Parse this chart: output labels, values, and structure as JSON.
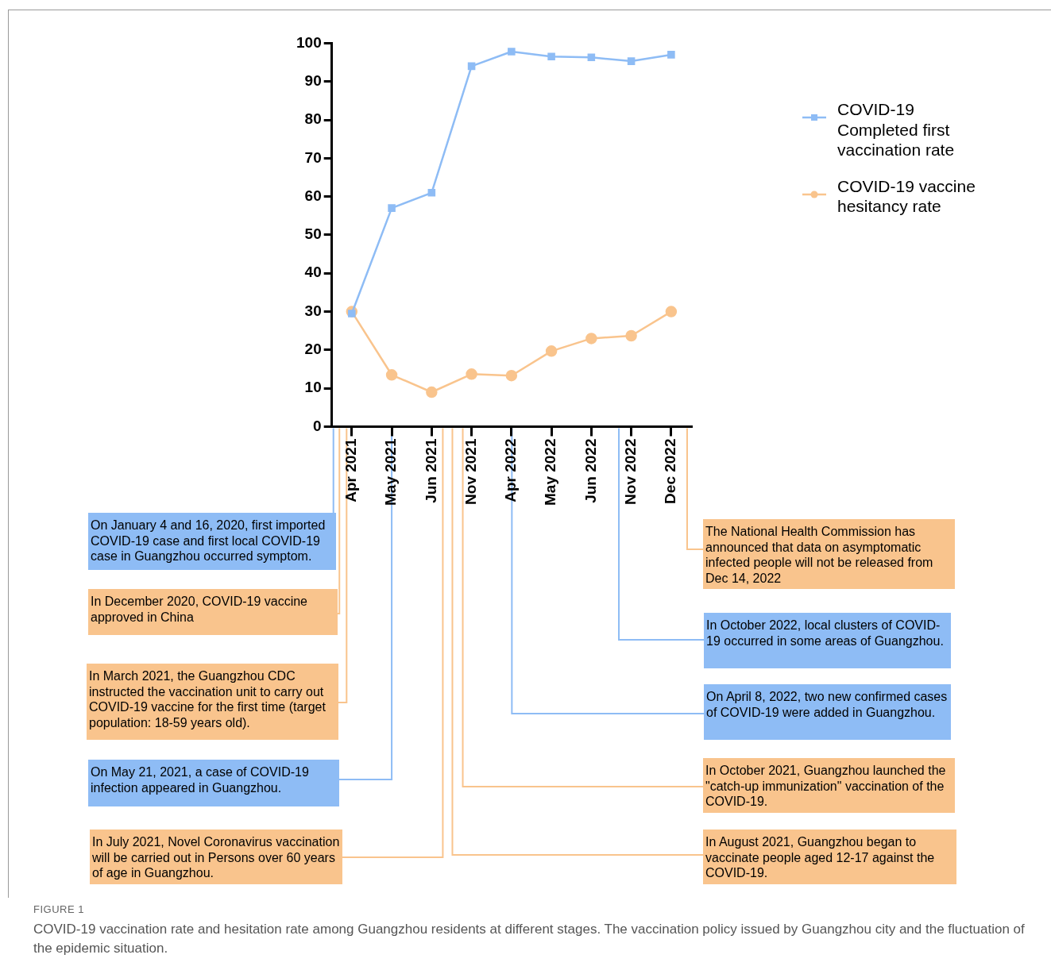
{
  "chart_data": {
    "type": "line",
    "categories": [
      "Apr 2021",
      "May 2021",
      "Jun 2021",
      "Nov 2021",
      "Apr 2022",
      "May 2022",
      "Jun 2022",
      "Nov 2022",
      "Dec 2022"
    ],
    "series": [
      {
        "name": "COVID-19 Completed first vaccination rate",
        "color": "#8ebcf5",
        "marker": "square",
        "values": [
          29.5,
          57,
          61,
          94,
          97.8,
          96.5,
          96.3,
          95.3,
          97
        ]
      },
      {
        "name": "COVID-19 vaccine hesitancy rate",
        "color": "#f9c48d",
        "marker": "circle",
        "values": [
          30,
          13.5,
          9,
          13.7,
          13.3,
          19.7,
          23,
          23.7,
          30
        ]
      }
    ],
    "ylim": [
      0,
      100
    ],
    "yticks": [
      0,
      10,
      20,
      30,
      40,
      50,
      60,
      70,
      80,
      90,
      100
    ],
    "grid": false,
    "legend": "right",
    "line_style": "solid",
    "annotations": [
      "On January 4 and 16, 2020, first imported COVID-19 case and first local COVID-19 case in Guangzhou occurred symptom.",
      "In December 2020, COVID-19 vaccine approved in China",
      "In March 2021, the Guangzhou CDC instructed the vaccination unit to carry out COVID-19 vaccine for the first time (target population: 18-59 years old).",
      "On May 21, 2021, a case of COVID-19 infection appeared in Guangzhou.",
      "In July 2021, Novel Coronavirus vaccination will be carried out in Persons over 60 years of age in Guangzhou.",
      "The National Health Commission has announced that data on asymptomatic infected people will not be released from Dec 14, 2022",
      "In October 2022, local clusters of COVID-19 occurred in some areas of Guangzhou.",
      "On April 8, 2022, two new confirmed cases of COVID-19 were added in Guangzhou.",
      "In October 2021, Guangzhou launched the \"catch-up immunization\" vaccination of the COVID-19.",
      "In August 2021, Guangzhou began to vaccinate people aged 12-17 against the COVID-19.",
      "FIGURE 1",
      "COVID-19 vaccination rate and hesitation rate among Guangzhou residents at different stages. The vaccination policy issued by Guangzhou city and the fluctuation of the epidemic situation."
    ]
  }
}
